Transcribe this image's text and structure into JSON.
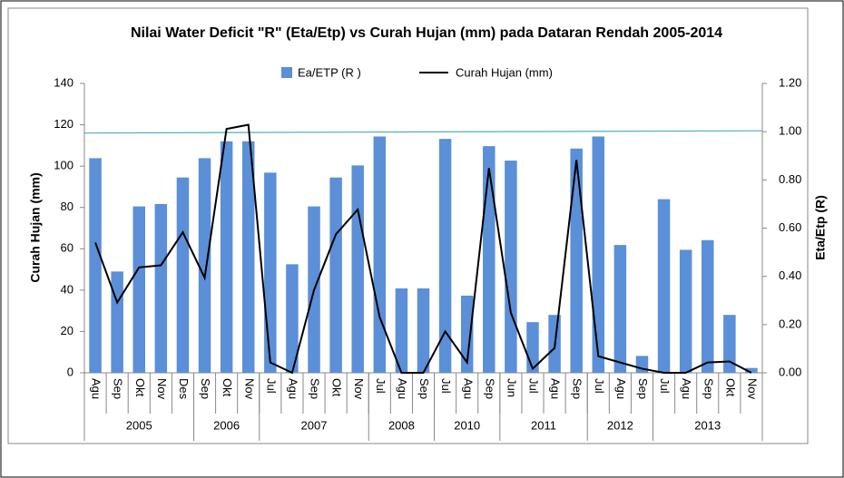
{
  "chart_data": {
    "type": "bar-line",
    "title": "Nilai Water Deficit \"R\" (Eta/Etp) vs Curah Hujan (mm) pada Dataran Rendah 2005-2014",
    "ylabel": "Curah Hujan (mm)",
    "y2label": "Eta/Etp (R)",
    "categories": [
      "Agu",
      "Sep",
      "Okt",
      "Nov",
      "Des",
      "Sep",
      "Okt",
      "Nov",
      "Jul",
      "Agu",
      "Sep",
      "Okt",
      "Nov",
      "Jul",
      "Agu",
      "Sep",
      "Jul",
      "Agu",
      "Sep",
      "Jun",
      "Jul",
      "Agu",
      "Sep",
      "Jul",
      "Agu",
      "Sep",
      "Jul",
      "Agu",
      "Sep",
      "Okt",
      "Nov"
    ],
    "year_groups": [
      {
        "label": "2005",
        "span": 5
      },
      {
        "label": "2006",
        "span": 3
      },
      {
        "label": "2007",
        "span": 5
      },
      {
        "label": "2008",
        "span": 3
      },
      {
        "label": "2010",
        "span": 3
      },
      {
        "label": "2011",
        "span": 4
      },
      {
        "label": "2012",
        "span": 3
      },
      {
        "label": "2013",
        "span": 5
      }
    ],
    "series": [
      {
        "name": "Ea/ETP (R )",
        "type": "bar",
        "axis": "y2",
        "color": "#5b8fd8",
        "values": [
          0.89,
          0.42,
          0.69,
          0.7,
          0.81,
          0.89,
          0.96,
          0.96,
          0.83,
          0.45,
          0.69,
          0.81,
          0.86,
          0.98,
          0.35,
          0.35,
          0.97,
          0.32,
          0.94,
          0.88,
          0.21,
          0.24,
          0.93,
          0.98,
          0.53,
          0.07,
          0.72,
          0.51,
          0.55,
          0.24,
          0.02
        ]
      },
      {
        "name": "Curah Hujan (mm)",
        "type": "line",
        "axis": "y",
        "color": "#000000",
        "values": [
          63,
          34,
          51,
          52,
          68,
          46,
          118,
          120,
          5,
          0,
          40,
          67,
          79,
          27,
          0,
          0,
          20,
          5,
          99,
          29,
          2,
          12,
          103,
          8,
          5,
          2,
          0,
          0,
          5,
          5.5,
          0
        ]
      }
    ],
    "reference_line": {
      "axis": "y2",
      "value": 1,
      "color": "#4bacc6"
    },
    "ylim": [
      0,
      140
    ],
    "yticks": [
      0,
      20,
      40,
      60,
      80,
      100,
      120,
      140
    ],
    "y2lim": [
      0,
      1.2
    ],
    "y2ticks": [
      {
        "value": 0,
        "label": "0.00"
      },
      {
        "value": 0.2,
        "label": "0.20"
      },
      {
        "value": 0.4,
        "label": "0.40"
      },
      {
        "value": 0.6,
        "label": "0.60"
      },
      {
        "value": 0.8,
        "label": "0.80"
      },
      {
        "value": 1,
        "label": "1.00"
      },
      {
        "value": 1.2,
        "label": "1.20"
      }
    ],
    "legend": "top"
  }
}
